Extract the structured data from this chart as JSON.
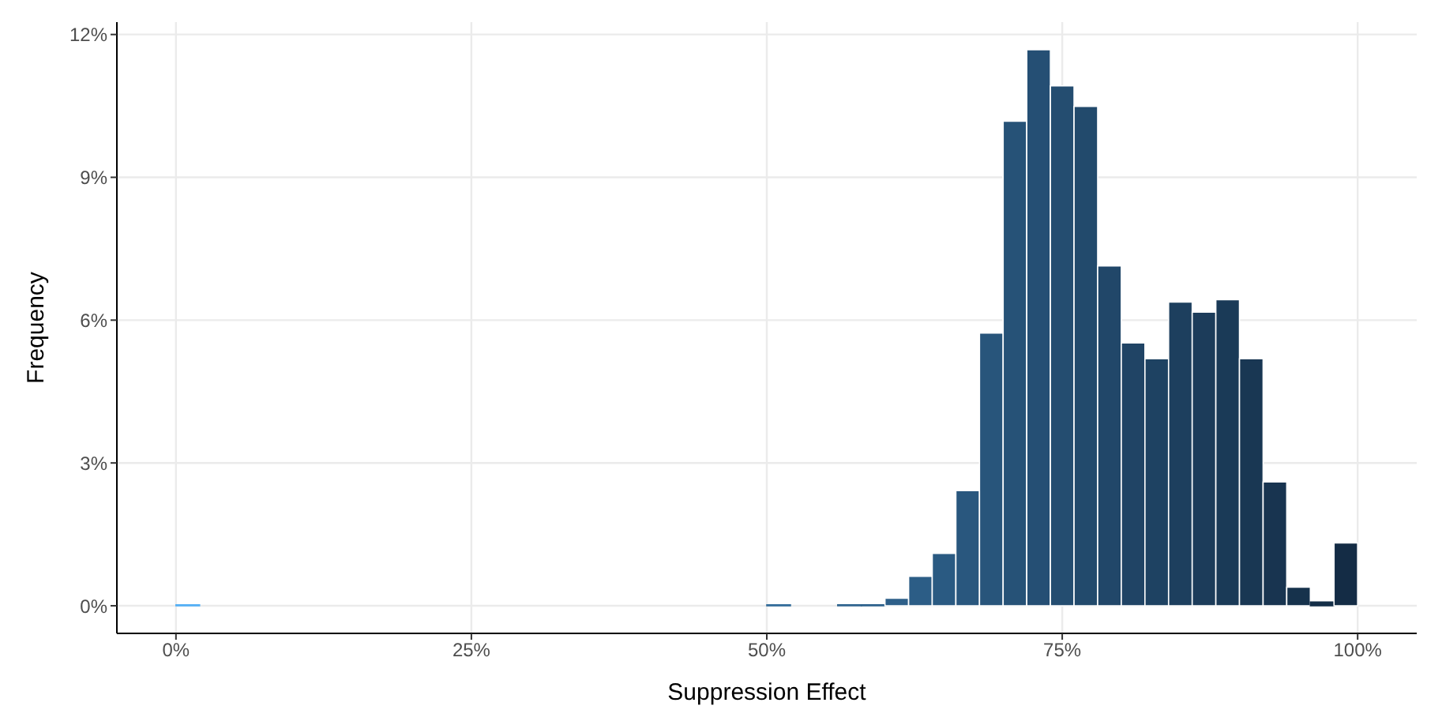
{
  "chart_data": {
    "type": "histogram",
    "xlabel": "Suppression Effect",
    "ylabel": "Frequency",
    "bins": [
      0,
      2,
      4,
      6,
      8,
      10,
      12,
      14,
      16,
      18,
      20,
      22,
      24,
      26,
      28,
      30,
      32,
      34,
      36,
      38,
      40,
      42,
      44,
      46,
      48,
      50,
      52,
      54,
      56,
      58,
      60,
      62,
      64,
      66,
      68,
      70,
      72,
      74,
      76,
      78,
      80,
      82,
      84,
      86,
      88,
      90,
      92,
      94,
      96,
      98,
      100
    ],
    "values": [
      0.02,
      0,
      0,
      0,
      0,
      0,
      0,
      0,
      0,
      0,
      0,
      0,
      0,
      0,
      0,
      0,
      0,
      0,
      0,
      0,
      0,
      0,
      0,
      0,
      0,
      0.02,
      0,
      0,
      0.02,
      0.02,
      0.16,
      0.62,
      1.1,
      2.42,
      5.73,
      10.18,
      11.68,
      10.92,
      10.49,
      7.14,
      5.52,
      5.19,
      6.38,
      6.17,
      6.43,
      5.19,
      2.6,
      0.39,
      0.08,
      1.32
    ],
    "colors": [
      "#55b0f5",
      null,
      null,
      null,
      null,
      null,
      null,
      null,
      null,
      null,
      null,
      null,
      null,
      null,
      null,
      null,
      null,
      null,
      null,
      null,
      null,
      null,
      null,
      null,
      null,
      "#346d9b",
      null,
      null,
      "#306590",
      "#2e628d",
      "#2d5f89",
      "#2c5d86",
      "#2a5a82",
      "#29577e",
      "#28557b",
      "#265277",
      "#254f74",
      "#244d70",
      "#224a6c",
      "#214769",
      "#204465",
      "#1e4262",
      "#1d3f5e",
      "#1c3c5a",
      "#1a3a57",
      "#193753",
      "#183450",
      "#16324c",
      "#152f48",
      "#142c45"
    ],
    "xlim": [
      -5,
      105
    ],
    "xticks": [
      {
        "value": 0,
        "label": "0%"
      },
      {
        "value": 25,
        "label": "25%"
      },
      {
        "value": 50,
        "label": "50%"
      },
      {
        "value": 75,
        "label": "75%"
      },
      {
        "value": 100,
        "label": "100%"
      }
    ],
    "ylim": [
      -0.58,
      12.26
    ],
    "yticks": [
      {
        "value": 0,
        "label": "0%"
      },
      {
        "value": 3,
        "label": "3%"
      },
      {
        "value": 6,
        "label": "6%"
      },
      {
        "value": 9,
        "label": "9%"
      },
      {
        "value": 12,
        "label": "12%"
      }
    ],
    "grid": true
  }
}
